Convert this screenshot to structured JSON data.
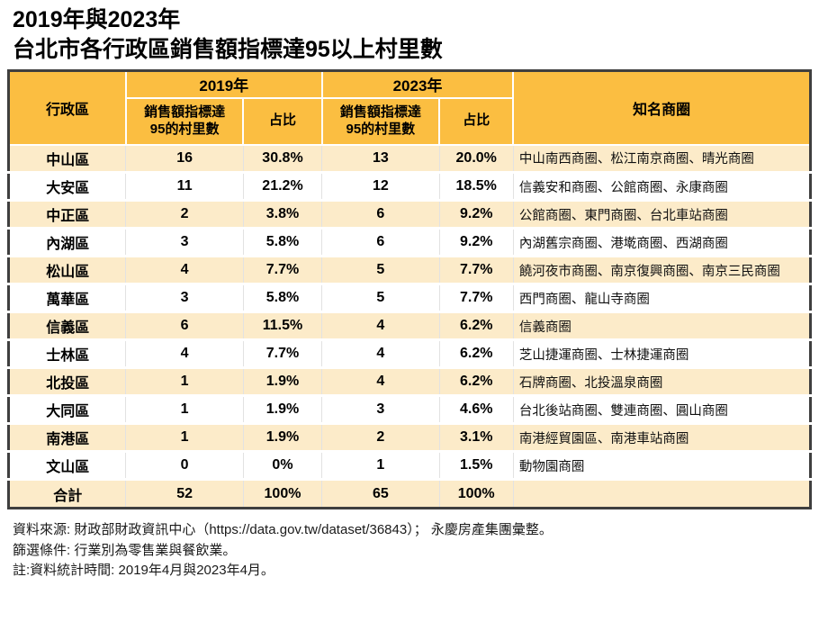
{
  "title": {
    "line1": "2019年與2023年",
    "line2": "台北市各行政區銷售額指標達95以上村里數"
  },
  "colors": {
    "header_gold": "#FBBE41",
    "row_cream": "#FCEBC9",
    "row_white": "#FFFFFF",
    "border_dark": "#3F3F3F",
    "sep_light": "#E2E2E2"
  },
  "table": {
    "header": {
      "district": "行政區",
      "group_2019": "2019年",
      "group_2023": "2023年",
      "villages_label": "銷售額指標達\n95的村里數",
      "share_label": "占比",
      "famous_areas": "知名商圈"
    },
    "rows": [
      {
        "district": "中山區",
        "v2019": "16",
        "p2019": "30.8%",
        "v2023": "13",
        "p2023": "20.0%",
        "areas": "中山南西商圈、松江南京商圈、晴光商圈"
      },
      {
        "district": "大安區",
        "v2019": "11",
        "p2019": "21.2%",
        "v2023": "12",
        "p2023": "18.5%",
        "areas": "信義安和商圈、公館商圈、永康商圈"
      },
      {
        "district": "中正區",
        "v2019": "2",
        "p2019": "3.8%",
        "v2023": "6",
        "p2023": "9.2%",
        "areas": "公館商圈、東門商圈、台北車站商圈"
      },
      {
        "district": "內湖區",
        "v2019": "3",
        "p2019": "5.8%",
        "v2023": "6",
        "p2023": "9.2%",
        "areas": "內湖舊宗商圈、港墘商圈、西湖商圈"
      },
      {
        "district": "松山區",
        "v2019": "4",
        "p2019": "7.7%",
        "v2023": "5",
        "p2023": "7.7%",
        "areas": "饒河夜市商圈、南京復興商圈、南京三民商圈"
      },
      {
        "district": "萬華區",
        "v2019": "3",
        "p2019": "5.8%",
        "v2023": "5",
        "p2023": "7.7%",
        "areas": "西門商圈、龍山寺商圈"
      },
      {
        "district": "信義區",
        "v2019": "6",
        "p2019": "11.5%",
        "v2023": "4",
        "p2023": "6.2%",
        "areas": "信義商圈"
      },
      {
        "district": "士林區",
        "v2019": "4",
        "p2019": "7.7%",
        "v2023": "4",
        "p2023": "6.2%",
        "areas": "芝山捷運商圈、士林捷運商圈"
      },
      {
        "district": "北投區",
        "v2019": "1",
        "p2019": "1.9%",
        "v2023": "4",
        "p2023": "6.2%",
        "areas": "石牌商圈、北投溫泉商圈"
      },
      {
        "district": "大同區",
        "v2019": "1",
        "p2019": "1.9%",
        "v2023": "3",
        "p2023": "4.6%",
        "areas": "台北後站商圈、雙連商圈、圓山商圈"
      },
      {
        "district": "南港區",
        "v2019": "1",
        "p2019": "1.9%",
        "v2023": "2",
        "p2023": "3.1%",
        "areas": "南港經貿園區、南港車站商圈"
      },
      {
        "district": "文山區",
        "v2019": "0",
        "p2019": "0%",
        "v2023": "1",
        "p2023": "1.5%",
        "areas": "動物園商圈"
      }
    ],
    "total": {
      "district": "合計",
      "v2019": "52",
      "p2019": "100%",
      "v2023": "65",
      "p2023": "100%",
      "areas": ""
    }
  },
  "footer": {
    "line1": "資料來源: 財政部財政資訊中心（https://data.gov.tw/dataset/36843）； 永慶房產集團彙整。",
    "line2": "篩選條件: 行業別為零售業與餐飲業。",
    "line3": "註:資料統計時間: 2019年4月與2023年4月。"
  },
  "chart_data": {
    "type": "table",
    "title": "2019年與2023年 台北市各行政區銷售額指標達95以上村里數",
    "columns": [
      "行政區",
      "2019年 銷售額指標達95的村里數",
      "2019年 占比",
      "2023年 銷售額指標達95的村里數",
      "2023年 占比",
      "知名商圈"
    ],
    "rows": [
      [
        "中山區",
        16,
        "30.8%",
        13,
        "20.0%",
        "中山南西商圈、松江南京商圈、晴光商圈"
      ],
      [
        "大安區",
        11,
        "21.2%",
        12,
        "18.5%",
        "信義安和商圈、公館商圈、永康商圈"
      ],
      [
        "中正區",
        2,
        "3.8%",
        6,
        "9.2%",
        "公館商圈、東門商圈、台北車站商圈"
      ],
      [
        "內湖區",
        3,
        "5.8%",
        6,
        "9.2%",
        "內湖舊宗商圈、港墘商圈、西湖商圈"
      ],
      [
        "松山區",
        4,
        "7.7%",
        5,
        "7.7%",
        "饒河夜市商圈、南京復興商圈、南京三民商圈"
      ],
      [
        "萬華區",
        3,
        "5.8%",
        5,
        "7.7%",
        "西門商圈、龍山寺商圈"
      ],
      [
        "信義區",
        6,
        "11.5%",
        4,
        "6.2%",
        "信義商圈"
      ],
      [
        "士林區",
        4,
        "7.7%",
        4,
        "6.2%",
        "芝山捷運商圈、士林捷運商圈"
      ],
      [
        "北投區",
        1,
        "1.9%",
        4,
        "6.2%",
        "石牌商圈、北投溫泉商圈"
      ],
      [
        "大同區",
        1,
        "1.9%",
        3,
        "4.6%",
        "台北後站商圈、雙連商圈、圓山商圈"
      ],
      [
        "南港區",
        1,
        "1.9%",
        2,
        "3.1%",
        "南港經貿園區、南港車站商圈"
      ],
      [
        "文山區",
        0,
        "0%",
        1,
        "1.5%",
        "動物園商圈"
      ],
      [
        "合計",
        52,
        "100%",
        65,
        "100%",
        ""
      ]
    ]
  }
}
